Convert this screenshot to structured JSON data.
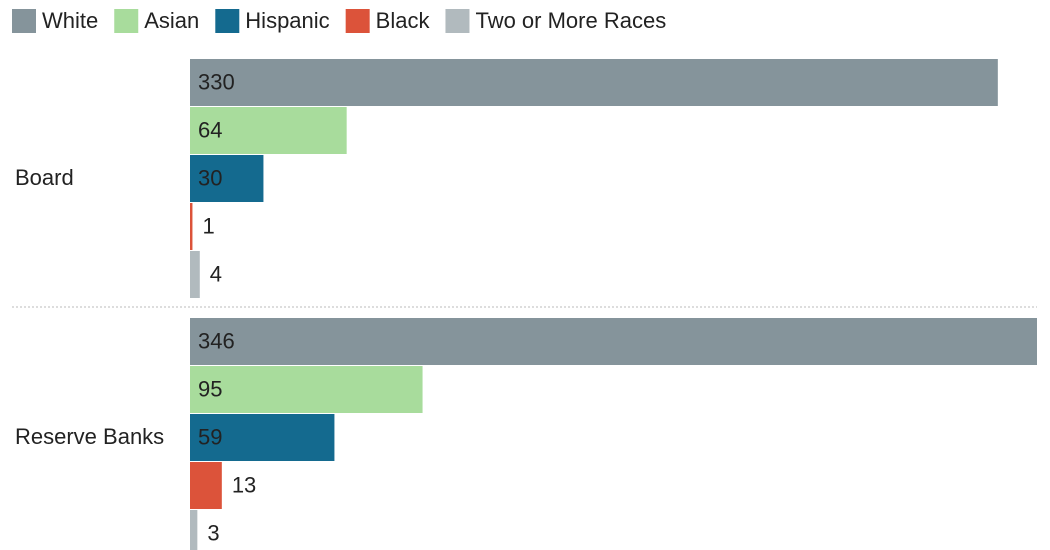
{
  "chart_data": {
    "type": "bar",
    "orientation": "horizontal",
    "categories": [
      "Board",
      "Reserve Banks"
    ],
    "series": [
      {
        "name": "White",
        "color": "#85949b",
        "values": [
          330,
          346
        ]
      },
      {
        "name": "Asian",
        "color": "#a8dc9c",
        "values": [
          64,
          95
        ]
      },
      {
        "name": "Hispanic",
        "color": "#146a8f",
        "values": [
          30,
          59
        ]
      },
      {
        "name": "Black",
        "color": "#dc533a",
        "values": [
          1,
          13
        ]
      },
      {
        "name": "Two or More Races",
        "color": "#b1babe",
        "values": [
          4,
          3
        ]
      }
    ],
    "legend": "top-left"
  }
}
